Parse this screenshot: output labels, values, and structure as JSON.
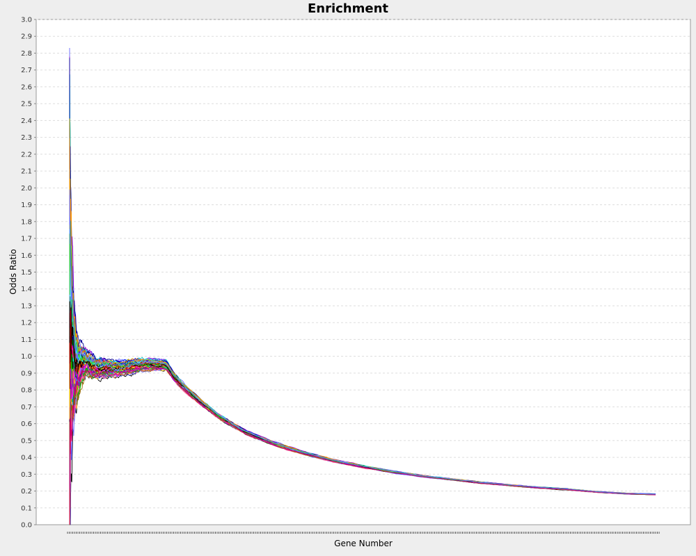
{
  "chart_data": {
    "type": "line",
    "title": "Enrichment",
    "xlabel": "Gene Number",
    "ylabel": "Odds Ratio",
    "ylim": [
      0.0,
      3.0
    ],
    "yticks": [
      "0.0",
      "0.1",
      "0.2",
      "0.3",
      "0.4",
      "0.5",
      "0.6",
      "0.7",
      "0.8",
      "0.9",
      "1.0",
      "1.1",
      "1.2",
      "1.3",
      "1.4",
      "1.5",
      "1.6",
      "1.7",
      "1.8",
      "1.9",
      "2.0",
      "2.1",
      "2.2",
      "2.3",
      "2.4",
      "2.5",
      "2.6",
      "2.7",
      "2.8",
      "2.9",
      "3.0"
    ],
    "x_tick_labels_visible": false,
    "grid": true,
    "legend": "none",
    "series_count": 60,
    "background": "#ffffff",
    "page_background": "#eeeeee",
    "grid_color": "#dddddd",
    "series_palette": [
      "#ff0000",
      "#0000ff",
      "#00cc00",
      "#ff00ff",
      "#00cccc",
      "#ffcc00",
      "#ff6699",
      "#990000",
      "#000099",
      "#006600",
      "#996600",
      "#9900cc",
      "#00ffff",
      "#cc9900",
      "#000000",
      "#ff9900",
      "#66ccff",
      "#cc0066",
      "#33cc33",
      "#6666ff"
    ],
    "envelope": {
      "x": [
        0.0,
        0.002,
        0.005,
        0.01,
        0.015,
        0.02,
        0.03,
        0.04,
        0.05,
        0.07,
        0.09,
        0.11,
        0.13,
        0.15,
        0.165,
        0.18,
        0.2,
        0.23,
        0.26,
        0.3,
        0.35,
        0.4,
        0.45,
        0.5,
        0.55,
        0.6,
        0.65,
        0.7,
        0.75,
        0.8,
        0.85,
        0.9,
        0.95,
        1.0
      ],
      "center": [
        1.0,
        1.15,
        1.05,
        0.95,
        0.92,
        0.95,
        0.96,
        0.94,
        0.93,
        0.93,
        0.93,
        0.94,
        0.95,
        0.95,
        0.945,
        0.87,
        0.8,
        0.71,
        0.63,
        0.55,
        0.48,
        0.425,
        0.38,
        0.345,
        0.315,
        0.29,
        0.27,
        0.25,
        0.235,
        0.22,
        0.21,
        0.195,
        0.185,
        0.18
      ],
      "spread": [
        1.9,
        1.0,
        0.55,
        0.3,
        0.2,
        0.15,
        0.09,
        0.08,
        0.07,
        0.06,
        0.055,
        0.05,
        0.045,
        0.04,
        0.035,
        0.03,
        0.025,
        0.02,
        0.018,
        0.016,
        0.014,
        0.012,
        0.01,
        0.009,
        0.008,
        0.007,
        0.006,
        0.006,
        0.005,
        0.005,
        0.005,
        0.004,
        0.004,
        0.004
      ],
      "peak_max": 2.94
    }
  }
}
